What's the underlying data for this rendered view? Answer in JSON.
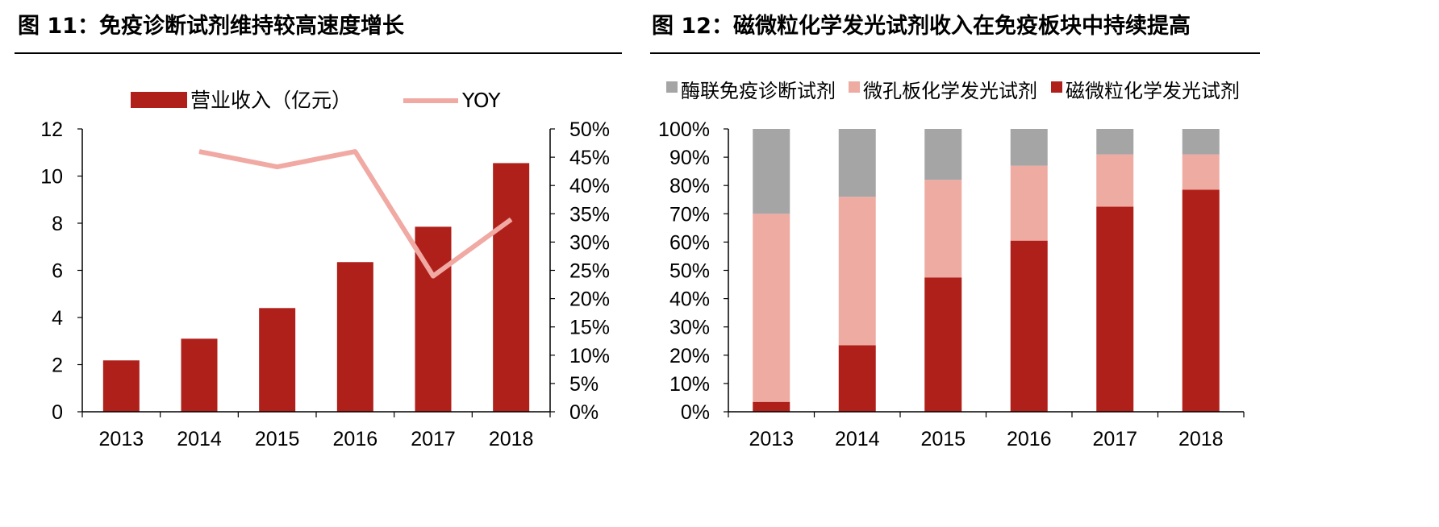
{
  "colors": {
    "dark_red": "#B0201A",
    "pink": "#EDABA2",
    "gray": "#A5A5A5",
    "yoy_line": "#F0A9A3"
  },
  "chart_data": [
    {
      "type": "bar",
      "title": "图 11：免疫诊断试剂维持较高速度增长",
      "categories": [
        "2013",
        "2014",
        "2015",
        "2016",
        "2017",
        "2018"
      ],
      "series": [
        {
          "name": "营业收入（亿元）",
          "type": "bar",
          "axis": "left",
          "values": [
            2.18,
            3.1,
            4.4,
            6.35,
            7.85,
            10.55
          ]
        },
        {
          "name": "YOY",
          "type": "line",
          "axis": "right",
          "values": [
            null,
            0.46,
            0.433,
            0.46,
            0.24,
            0.34
          ]
        }
      ],
      "ylim": [
        0,
        12
      ],
      "yticks": [
        0,
        2,
        4,
        6,
        8,
        10,
        12
      ],
      "y2lim": [
        0,
        0.5
      ],
      "y2ticks": [
        "0%",
        "5%",
        "10%",
        "15%",
        "20%",
        "25%",
        "30%",
        "35%",
        "40%",
        "45%",
        "50%"
      ],
      "legend_position": "top"
    },
    {
      "type": "bar",
      "stacked": true,
      "title": "图 12：磁微粒化学发光试剂收入在免疫板块中持续提高",
      "categories": [
        "2013",
        "2014",
        "2015",
        "2016",
        "2017",
        "2018"
      ],
      "series": [
        {
          "name": "磁微粒化学发光试剂",
          "values": [
            0.035,
            0.235,
            0.475,
            0.605,
            0.725,
            0.785
          ]
        },
        {
          "name": "微孔板化学发光试剂",
          "values": [
            0.665,
            0.525,
            0.345,
            0.265,
            0.185,
            0.125
          ]
        },
        {
          "name": "酶联免疫诊断试剂",
          "values": [
            0.3,
            0.24,
            0.18,
            0.13,
            0.09,
            0.09
          ]
        }
      ],
      "legend_order": [
        "酶联免疫诊断试剂",
        "微孔板化学发光试剂",
        "磁微粒化学发光试剂"
      ],
      "ylim": [
        0,
        1
      ],
      "yticks": [
        "0%",
        "10%",
        "20%",
        "30%",
        "40%",
        "50%",
        "60%",
        "70%",
        "80%",
        "90%",
        "100%"
      ],
      "legend_position": "top"
    }
  ]
}
